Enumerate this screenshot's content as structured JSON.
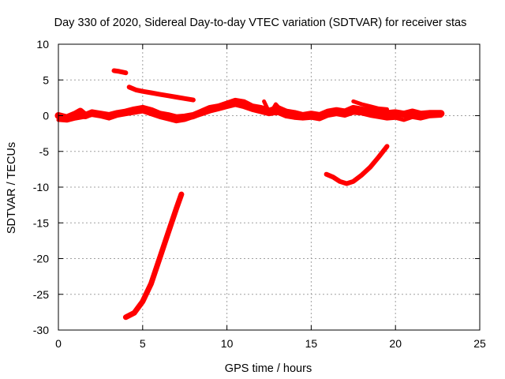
{
  "chart_data": {
    "type": "line",
    "title": "Day 330 of 2020, Sidereal Day-to-day VTEC variation (SDTVAR) for receiver stas",
    "xlabel": "GPS time / hours",
    "ylabel": "SDTVAR / TECUs",
    "xlim": [
      0,
      25
    ],
    "ylim": [
      -30,
      10
    ],
    "xticks": [
      0,
      5,
      10,
      15,
      20,
      25
    ],
    "yticks": [
      10,
      5,
      0,
      -5,
      -10,
      -15,
      -20,
      -25,
      -30
    ],
    "xtick_labels": [
      "0",
      "5",
      "10",
      "15",
      "20",
      "25"
    ],
    "ytick_labels": [
      "10",
      "5",
      "0",
      "-5",
      "-10",
      "-15",
      "-20",
      "-25",
      "-30"
    ],
    "grid": true,
    "legend": "none",
    "series_color": "#ff0000",
    "series": [
      {
        "name": "main-band",
        "width": 9,
        "points": [
          [
            0.0,
            0.0
          ],
          [
            0.5,
            -0.3
          ],
          [
            1.0,
            0.2
          ],
          [
            1.3,
            0.6
          ],
          [
            1.6,
            0.0
          ],
          [
            2.0,
            0.4
          ],
          [
            2.5,
            0.2
          ],
          [
            3.0,
            0.0
          ],
          [
            3.5,
            0.3
          ],
          [
            4.0,
            0.5
          ],
          [
            4.5,
            0.8
          ],
          [
            5.0,
            1.0
          ],
          [
            5.5,
            0.7
          ],
          [
            6.0,
            0.2
          ],
          [
            6.5,
            0.0
          ],
          [
            7.0,
            -0.3
          ],
          [
            7.5,
            -0.2
          ],
          [
            8.0,
            0.0
          ],
          [
            8.5,
            0.5
          ],
          [
            9.0,
            1.0
          ],
          [
            9.5,
            1.2
          ],
          [
            10.0,
            1.6
          ],
          [
            10.5,
            2.0
          ],
          [
            11.0,
            1.8
          ],
          [
            11.5,
            1.2
          ],
          [
            12.0,
            1.0
          ],
          [
            12.5,
            0.6
          ],
          [
            13.0,
            1.0
          ],
          [
            13.5,
            0.5
          ],
          [
            14.0,
            0.3
          ],
          [
            14.5,
            0.0
          ],
          [
            15.0,
            0.2
          ],
          [
            15.5,
            0.0
          ],
          [
            16.0,
            0.5
          ],
          [
            16.5,
            0.7
          ],
          [
            17.0,
            0.5
          ],
          [
            17.5,
            1.0
          ],
          [
            18.0,
            0.8
          ],
          [
            18.5,
            0.6
          ],
          [
            19.0,
            0.5
          ],
          [
            19.5,
            0.3
          ],
          [
            20.0,
            0.4
          ],
          [
            20.5,
            0.2
          ],
          [
            21.0,
            0.5
          ],
          [
            21.5,
            0.2
          ],
          [
            22.0,
            0.3
          ],
          [
            22.7,
            0.3
          ]
        ]
      },
      {
        "name": "secondary-band",
        "width": 5,
        "points": [
          [
            0.0,
            -0.6
          ],
          [
            0.5,
            -0.7
          ],
          [
            1.0,
            -0.4
          ],
          [
            1.5,
            -0.2
          ],
          [
            2.0,
            0.1
          ],
          [
            2.5,
            -0.1
          ],
          [
            3.0,
            -0.4
          ],
          [
            3.5,
            0.0
          ],
          [
            4.0,
            0.2
          ],
          [
            5.0,
            0.6
          ],
          [
            6.0,
            -0.2
          ],
          [
            6.5,
            -0.5
          ],
          [
            7.0,
            -0.8
          ],
          [
            7.5,
            -0.6
          ],
          [
            8.0,
            -0.2
          ],
          [
            8.5,
            0.2
          ],
          [
            9.0,
            0.6
          ],
          [
            9.5,
            0.9
          ],
          [
            10.0,
            1.2
          ],
          [
            10.5,
            1.5
          ],
          [
            11.0,
            1.2
          ],
          [
            11.5,
            0.8
          ],
          [
            12.0,
            0.5
          ],
          [
            12.5,
            0.2
          ],
          [
            13.0,
            0.4
          ],
          [
            13.5,
            -0.1
          ],
          [
            14.0,
            -0.3
          ],
          [
            14.5,
            -0.4
          ],
          [
            15.0,
            -0.3
          ],
          [
            15.5,
            -0.5
          ],
          [
            16.0,
            0.0
          ],
          [
            16.5,
            0.2
          ],
          [
            17.0,
            0.0
          ],
          [
            17.5,
            0.4
          ],
          [
            18.0,
            0.3
          ],
          [
            18.5,
            0.0
          ],
          [
            19.0,
            -0.2
          ],
          [
            19.5,
            -0.4
          ],
          [
            20.0,
            -0.3
          ],
          [
            20.5,
            -0.6
          ],
          [
            21.0,
            -0.2
          ],
          [
            21.5,
            -0.4
          ],
          [
            22.0,
            -0.1
          ],
          [
            22.7,
            0.0
          ]
        ]
      },
      {
        "name": "upper-arc",
        "width": 6,
        "points": [
          [
            4.2,
            4.0
          ],
          [
            4.6,
            3.6
          ],
          [
            5.0,
            3.4
          ],
          [
            5.5,
            3.2
          ],
          [
            6.0,
            3.0
          ],
          [
            6.5,
            2.8
          ],
          [
            7.0,
            2.6
          ],
          [
            7.5,
            2.4
          ],
          [
            8.0,
            2.2
          ]
        ]
      },
      {
        "name": "short-segment",
        "width": 6,
        "points": [
          [
            3.3,
            6.3
          ],
          [
            3.6,
            6.2
          ],
          [
            4.0,
            6.0
          ]
        ]
      },
      {
        "name": "spike-segment",
        "width": 5,
        "points": [
          [
            12.2,
            2.0
          ],
          [
            12.4,
            1.0
          ],
          [
            12.6,
            0.4
          ],
          [
            12.9,
            1.6
          ],
          [
            13.2,
            0.8
          ],
          [
            13.4,
            0.2
          ]
        ]
      },
      {
        "name": "right-upper-trail",
        "width": 5,
        "points": [
          [
            17.5,
            2.0
          ],
          [
            18.0,
            1.6
          ],
          [
            18.5,
            1.3
          ],
          [
            19.0,
            1.0
          ],
          [
            19.5,
            0.9
          ]
        ]
      },
      {
        "name": "steep-trace",
        "width": 7,
        "points": [
          [
            4.0,
            -28.2
          ],
          [
            4.5,
            -27.6
          ],
          [
            5.0,
            -26.0
          ],
          [
            5.5,
            -23.5
          ],
          [
            6.0,
            -20.0
          ],
          [
            6.5,
            -16.5
          ],
          [
            7.0,
            -13.0
          ],
          [
            7.3,
            -11.0
          ]
        ]
      },
      {
        "name": "right-hook",
        "width": 6,
        "points": [
          [
            15.9,
            -8.2
          ],
          [
            16.3,
            -8.6
          ],
          [
            16.7,
            -9.2
          ],
          [
            17.1,
            -9.5
          ],
          [
            17.5,
            -9.2
          ],
          [
            18.0,
            -8.3
          ],
          [
            18.5,
            -7.2
          ],
          [
            19.0,
            -5.8
          ],
          [
            19.5,
            -4.3
          ]
        ]
      }
    ]
  }
}
